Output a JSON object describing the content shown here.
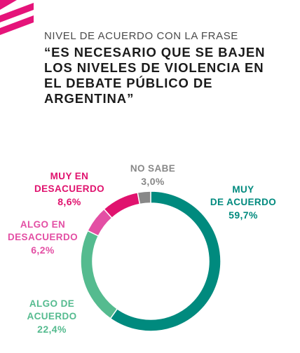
{
  "subtitle": "NIVEL DE ACUERDO CON LA FRASE",
  "title_lines": [
    "“ES NECESARIO QUE SE BAJEN",
    "LOS NIVELES DE VIOLENCIA EN",
    "EL DEBATE PÚBLICO DE",
    "ARGENTINA”"
  ],
  "colors": {
    "brand": "#e5147a",
    "muy_de_acuerdo": "#008a7e",
    "algo_de_acuerdo": "#55bb8f",
    "algo_en_desacuerdo": "#e34fa4",
    "muy_en_desacuerdo": "#e0126e",
    "no_sabe": "#888888"
  },
  "chart_data": {
    "type": "pie",
    "donut": true,
    "title": "“ES NECESARIO QUE SE BAJEN LOS NIVELES DE VIOLENCIA EN EL DEBATE PÚBLICO DE ARGENTINA”",
    "subtitle": "NIVEL DE ACUERDO CON LA FRASE",
    "slices": [
      {
        "label_lines": [
          "MUY",
          "DE ACUERDO"
        ],
        "value": 59.7,
        "value_label": "59,7%",
        "color": "#008a7e"
      },
      {
        "label_lines": [
          "ALGO DE",
          "ACUERDO"
        ],
        "value": 22.4,
        "value_label": "22,4%",
        "color": "#55bb8f"
      },
      {
        "label_lines": [
          "ALGO EN",
          "DESACUERDO"
        ],
        "value": 6.2,
        "value_label": "6,2%",
        "color": "#e34fa4"
      },
      {
        "label_lines": [
          "MUY EN",
          "DESACUERDO"
        ],
        "value": 8.6,
        "value_label": "8,6%",
        "color": "#e0126e"
      },
      {
        "label_lines": [
          "NO SABE"
        ],
        "value": 3.0,
        "value_label": "3,0%",
        "color": "#888888"
      }
    ]
  }
}
